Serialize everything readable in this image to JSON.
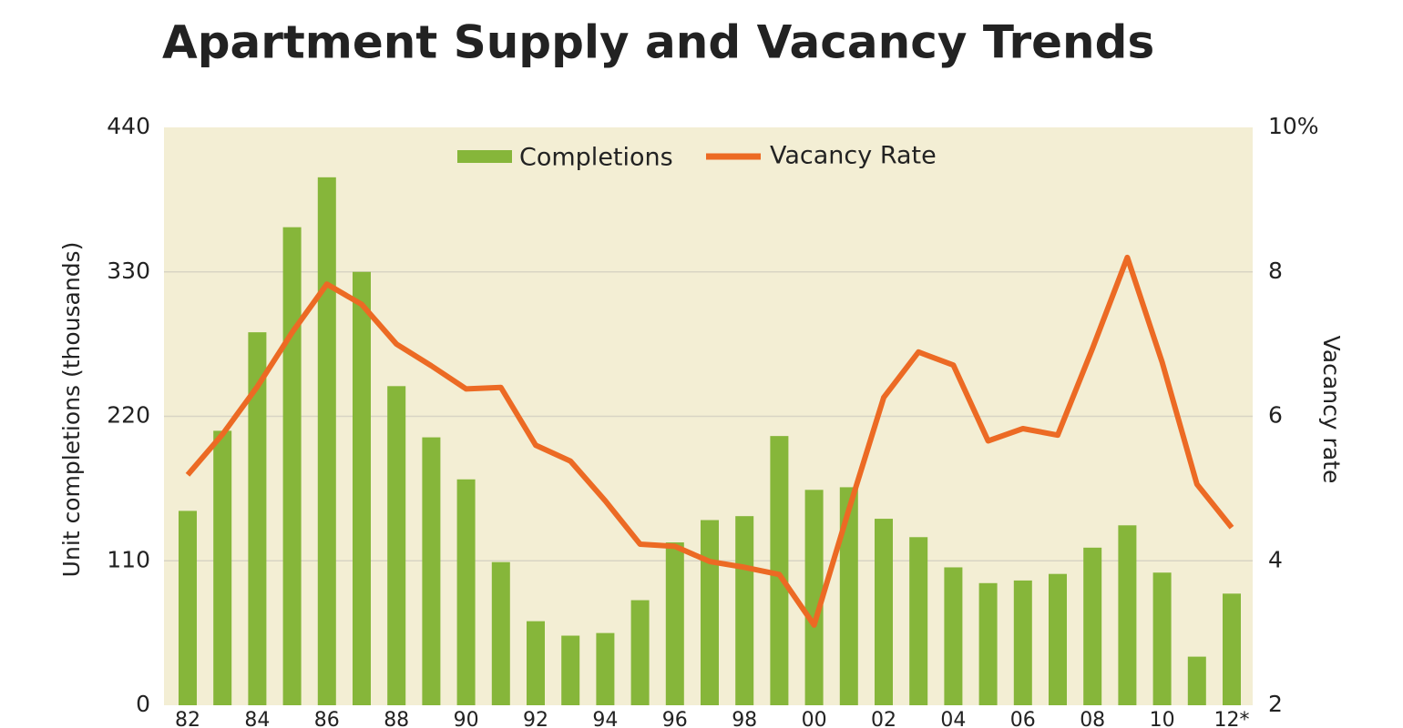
{
  "chart_data": {
    "type": "bar-line",
    "title": "Apartment Supply and Vacancy Trends",
    "y_label": "Unit completions (thousands)",
    "y2_label": "Vacancy rate",
    "categories": [
      "82",
      null,
      "84",
      null,
      "86",
      null,
      "88",
      null,
      "90",
      null,
      "92",
      null,
      "94",
      null,
      "96",
      null,
      "98",
      null,
      "00",
      null,
      "02",
      null,
      "04",
      null,
      "06",
      null,
      "08",
      null,
      "10",
      null,
      "12*"
    ],
    "series": [
      {
        "name": "Completions",
        "type": "bar",
        "color": "#86b63a",
        "values": [
          148,
          209,
          284,
          364,
          402,
          330,
          243,
          204,
          172,
          109,
          64,
          53,
          55,
          80,
          124,
          141,
          144,
          205,
          164,
          166,
          142,
          128,
          105,
          93,
          95,
          100,
          120,
          137,
          101,
          37,
          85
        ]
      },
      {
        "name": "Vacancy Rate",
        "type": "line",
        "axis": "y2",
        "color": "#ec6a24",
        "values": [
          5.19,
          5.75,
          6.41,
          7.16,
          7.83,
          7.55,
          7.0,
          6.7,
          6.38,
          6.4,
          5.6,
          5.38,
          4.83,
          4.23,
          4.2,
          3.99,
          3.91,
          3.81,
          3.11,
          4.71,
          6.26,
          6.89,
          6.71,
          5.66,
          5.83,
          5.74,
          6.94,
          8.2,
          6.75,
          5.06,
          4.46
        ]
      }
    ],
    "ylim": [
      0,
      440
    ],
    "yticks": [
      0,
      110,
      220,
      330,
      440
    ],
    "y2lim": [
      2,
      10
    ],
    "y2ticks": [
      2,
      4,
      6,
      8,
      {
        "value": 10,
        "label": "10%"
      }
    ],
    "grid": true,
    "legend": "top"
  }
}
